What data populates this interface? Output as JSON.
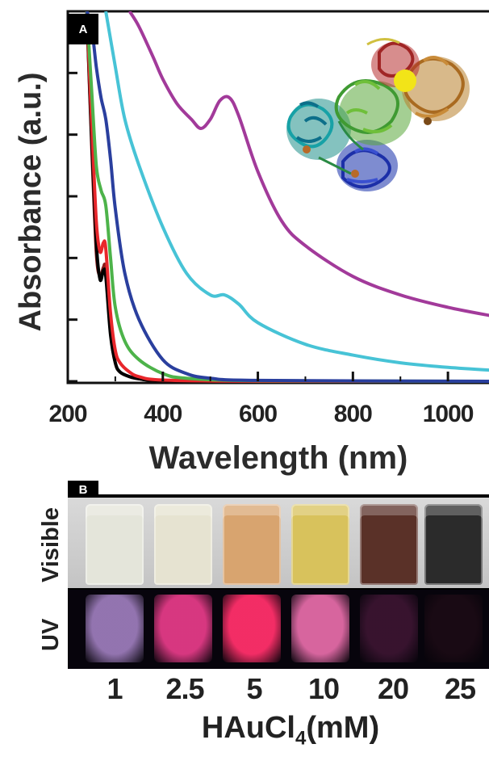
{
  "chart_data": {
    "type": "line",
    "panel_label": "A",
    "xlabel": "Wavelength (nm)",
    "ylabel": "Absorbance (a.u.)",
    "xlim": [
      200,
      1100
    ],
    "xticks": [
      200,
      400,
      600,
      800,
      1000
    ],
    "grid": false,
    "legend": "none",
    "inset": "protein-structure-ribbon",
    "series": [
      {
        "color": "#8a1a1a",
        "x": [
          240,
          250,
          260,
          268,
          275,
          280,
          290,
          300,
          310,
          330,
          350,
          400,
          600,
          1100
        ],
        "y": [
          1.2,
          0.78,
          0.42,
          0.34,
          0.37,
          0.36,
          0.16,
          0.06,
          0.03,
          0.015,
          0.008,
          0.002,
          0.0,
          0.0
        ]
      },
      {
        "color": "#000000",
        "x": [
          240,
          250,
          260,
          268,
          275,
          280,
          290,
          300,
          310,
          330,
          350,
          400,
          600,
          1100
        ],
        "y": [
          1.2,
          0.8,
          0.45,
          0.33,
          0.36,
          0.34,
          0.15,
          0.06,
          0.03,
          0.015,
          0.008,
          0.002,
          0.0,
          0.0
        ]
      },
      {
        "color": "#e8262b",
        "x": [
          240,
          250,
          260,
          268,
          275,
          280,
          290,
          300,
          310,
          330,
          350,
          400,
          600,
          1100
        ],
        "y": [
          1.2,
          0.85,
          0.52,
          0.42,
          0.45,
          0.43,
          0.22,
          0.1,
          0.06,
          0.03,
          0.015,
          0.004,
          0.0,
          0.0
        ]
      },
      {
        "color": "#4db34a",
        "x": [
          240,
          250,
          260,
          270,
          280,
          290,
          300,
          320,
          350,
          400,
          450,
          600,
          1100
        ],
        "y": [
          1.2,
          0.95,
          0.7,
          0.62,
          0.57,
          0.4,
          0.24,
          0.13,
          0.07,
          0.025,
          0.01,
          0.002,
          0.0
        ]
      },
      {
        "color": "#2a3f9e",
        "x": [
          240,
          250,
          260,
          270,
          280,
          290,
          300,
          320,
          350,
          400,
          450,
          500,
          600,
          1100
        ],
        "y": [
          1.2,
          1.15,
          1.02,
          0.92,
          0.85,
          0.72,
          0.56,
          0.35,
          0.2,
          0.07,
          0.025,
          0.01,
          0.003,
          0.0
        ]
      },
      {
        "color": "#47c3d6",
        "x": [
          280,
          300,
          320,
          350,
          400,
          450,
          500,
          530,
          560,
          600,
          700,
          800,
          900,
          1000,
          1100
        ],
        "y": [
          1.2,
          1.02,
          0.85,
          0.7,
          0.5,
          0.35,
          0.28,
          0.28,
          0.25,
          0.19,
          0.12,
          0.085,
          0.06,
          0.045,
          0.035
        ]
      },
      {
        "color": "#a23a9a",
        "x": [
          330,
          350,
          380,
          400,
          430,
          460,
          480,
          500,
          520,
          540,
          560,
          600,
          650,
          700,
          800,
          900,
          1000,
          1100
        ],
        "y": [
          1.2,
          1.15,
          1.05,
          0.98,
          0.9,
          0.85,
          0.82,
          0.85,
          0.91,
          0.92,
          0.86,
          0.68,
          0.52,
          0.44,
          0.34,
          0.28,
          0.24,
          0.21
        ]
      }
    ]
  },
  "panel_b": {
    "panel_label": "B",
    "row_labels": [
      "Visible",
      "UV"
    ],
    "concentrations": [
      "1",
      "2.5",
      "5",
      "10",
      "20",
      "25"
    ],
    "xtitle_main": "HAuCl",
    "xtitle_sub": "4",
    "xtitle_end": "(mM)",
    "visible_colors": [
      "#e4e5da",
      "#e6e3d1",
      "#d8a46f",
      "#d8c25c",
      "#5a3128",
      "#2b2b2b"
    ],
    "uv_colors": [
      "#9a7ab8",
      "#e23a86",
      "#ff2f6a",
      "#e26aa6",
      "#3a1430",
      "#1a0a14"
    ]
  }
}
